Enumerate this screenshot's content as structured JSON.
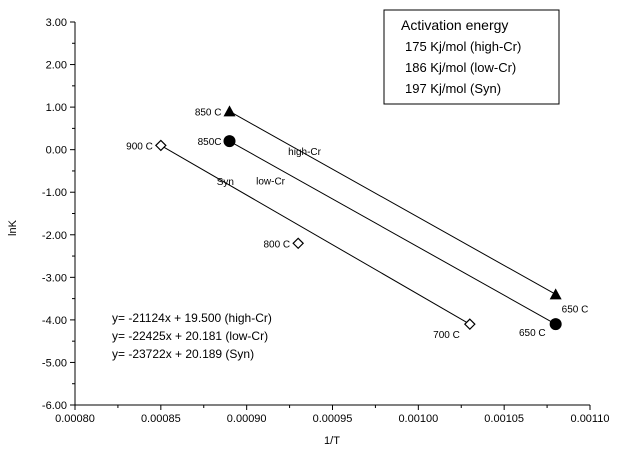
{
  "chart_data": {
    "type": "scatter",
    "title": "",
    "xlabel": "1/T",
    "ylabel": "lnK",
    "xlim": [
      0.0008,
      0.0011
    ],
    "ylim": [
      -6,
      3
    ],
    "x_ticks": [
      "0.00080",
      "0.00085",
      "0.00090",
      "0.00095",
      "0.00100",
      "0.00105",
      "0.00110"
    ],
    "y_ticks": [
      "-6.00",
      "-5.00",
      "-4.00",
      "-3.00",
      "-2.00",
      "-1.00",
      "0.00",
      "1.00",
      "2.00",
      "3.00"
    ],
    "grid": false,
    "series": [
      {
        "label": "high-Cr",
        "marker": "triangle",
        "points": [
          {
            "x": 0.00089,
            "y": 0.9,
            "label": "850 C"
          },
          {
            "x": 0.00108,
            "y": -3.4,
            "label": "650 C"
          }
        ],
        "fit": {
          "slope": -21124,
          "intercept": 19.5
        }
      },
      {
        "label": "low-Cr",
        "marker": "circle",
        "points": [
          {
            "x": 0.00089,
            "y": 0.2,
            "label": "850C"
          },
          {
            "x": 0.00108,
            "y": -4.1,
            "label": "650 C"
          }
        ],
        "fit": {
          "slope": -22425,
          "intercept": 20.181
        }
      },
      {
        "label": "Syn",
        "marker": "diamond-open",
        "points": [
          {
            "x": 0.00085,
            "y": 0.1,
            "label": "900 C"
          },
          {
            "x": 0.00093,
            "y": -2.2,
            "label": "800 C"
          },
          {
            "x": 0.00103,
            "y": -4.1,
            "label": "700 C"
          }
        ],
        "fit": {
          "slope": -23722,
          "intercept": 20.189
        }
      }
    ],
    "equations": [
      "y= -21124x + 19.500 (high-Cr)",
      "y= -22425x + 20.181 (low-Cr)",
      "y= -23722x + 20.189 (Syn)"
    ],
    "legend": {
      "title": "Activation energy",
      "lines": [
        "175 Kj/mol (high-Cr)",
        "186 Kj/mol (low-Cr)",
        "197 Kj/mol (Syn)"
      ],
      "position": "top-right"
    }
  }
}
